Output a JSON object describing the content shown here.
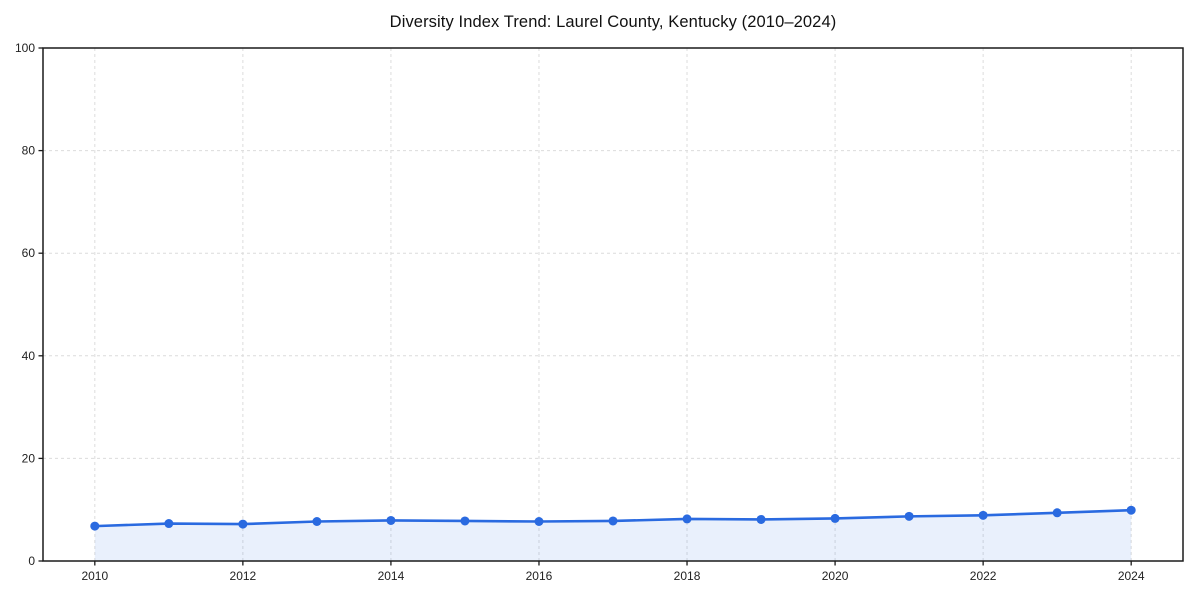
{
  "page": {
    "background": "#ffffff"
  },
  "chart_data": {
    "type": "line",
    "title": "Diversity Index Trend: Laurel County, Kentucky (2010–2024)",
    "xlabel": "",
    "ylabel": "",
    "x": [
      2010,
      2011,
      2012,
      2013,
      2014,
      2015,
      2016,
      2017,
      2018,
      2019,
      2020,
      2021,
      2022,
      2023,
      2024
    ],
    "series": [
      {
        "name": "Diversity Index",
        "values": [
          6.8,
          7.3,
          7.2,
          7.7,
          7.9,
          7.8,
          7.7,
          7.8,
          8.2,
          8.1,
          8.3,
          8.7,
          8.9,
          9.4,
          9.9
        ]
      }
    ],
    "xlim": [
      2009.3,
      2024.7
    ],
    "ylim": [
      0,
      100
    ],
    "xticks": [
      "2010",
      "2012",
      "2014",
      "2016",
      "2018",
      "2020",
      "2022",
      "2024"
    ],
    "yticks": [
      "0",
      "20",
      "40",
      "60",
      "80",
      "100"
    ],
    "grid": {
      "visible": true,
      "style": "dashed",
      "axes": "both"
    },
    "legend": "none",
    "area_fill": true,
    "style": {
      "line_color": "#2a6ae0",
      "marker_color": "#2a6ae0",
      "marker_radius": 4.5,
      "line_width": 2.6,
      "area_color": "#2a6ae0",
      "area_opacity": 0.1,
      "grid_color": "#dcdcdc",
      "spine_color": "#1a1a1a",
      "tick_color": "#1a1a1a",
      "tick_label_color": "#222222",
      "title_color": "#111111",
      "background": "#ffffff"
    }
  }
}
